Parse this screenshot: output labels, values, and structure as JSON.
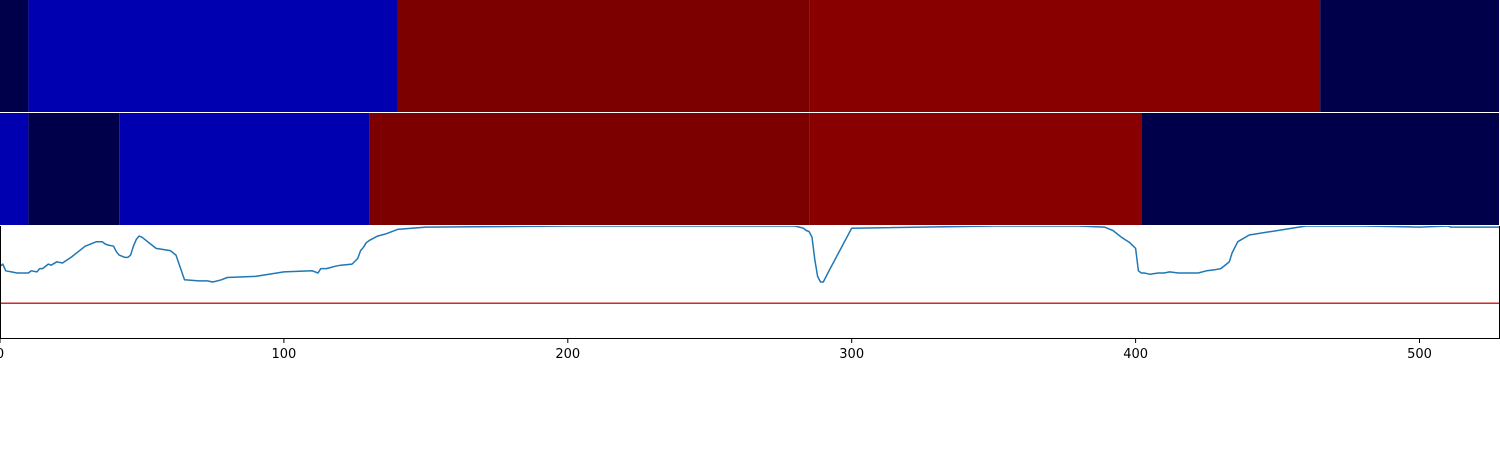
{
  "chart_data": {
    "type": "heatmap",
    "xlim": [
      0,
      528
    ],
    "x_ticks": [
      0,
      100,
      200,
      300,
      400,
      500
    ],
    "x_tick_labels": [
      "0",
      "100",
      "200",
      "300",
      "400",
      "500"
    ],
    "grid": false,
    "legend": "none",
    "colors": {
      "navy": "#00004a",
      "blue": "#0000b0",
      "dark_red": "#7c0000",
      "red": "#880000",
      "line": "#1f77b4",
      "threshold": "#d62728"
    },
    "heatmap_rows": [
      {
        "segments": [
          {
            "start": 0,
            "end": 10,
            "color": "#00004a"
          },
          {
            "start": 10,
            "end": 140,
            "color": "#0000b0"
          },
          {
            "start": 140,
            "end": 285,
            "color": "#7c0000"
          },
          {
            "start": 285,
            "end": 465,
            "color": "#880000"
          },
          {
            "start": 465,
            "end": 528,
            "color": "#00004a"
          }
        ]
      },
      {
        "segments": [
          {
            "start": 0,
            "end": 10,
            "color": "#0000b0"
          },
          {
            "start": 10,
            "end": 42,
            "color": "#00004a"
          },
          {
            "start": 42,
            "end": 130,
            "color": "#0000b0"
          },
          {
            "start": 130,
            "end": 285,
            "color": "#7c0000"
          },
          {
            "start": 285,
            "end": 402,
            "color": "#880000"
          },
          {
            "start": 402,
            "end": 528,
            "color": "#00004a"
          }
        ]
      }
    ],
    "line_panel": {
      "ylim": [
        0,
        1
      ],
      "threshold": 0.31,
      "series": [
        {
          "x": [
            0,
            1,
            2,
            4,
            6,
            8,
            10,
            11,
            13,
            14,
            15,
            17,
            18,
            20,
            22,
            25,
            30,
            33,
            34,
            36,
            37,
            38,
            40,
            41,
            42,
            44,
            45,
            46,
            47,
            48,
            49,
            50,
            52,
            55,
            60,
            62,
            65,
            70,
            73,
            75,
            78,
            80,
            90,
            100,
            110,
            112,
            113,
            115,
            118,
            120,
            124,
            126,
            127,
            128,
            129,
            130,
            133,
            136,
            140,
            150,
            200,
            280,
            283,
            284,
            285,
            286,
            287,
            288,
            289,
            290,
            292,
            300,
            350,
            380,
            389,
            390,
            392,
            395,
            398,
            400,
            401,
            402,
            403,
            405,
            408,
            410,
            412,
            415,
            418,
            420,
            422,
            425,
            428,
            430,
            432,
            433,
            434,
            436,
            440,
            460,
            480,
            500,
            510,
            511,
            528
          ],
          "y": [
            0.64,
            0.66,
            0.6,
            0.59,
            0.58,
            0.58,
            0.58,
            0.6,
            0.59,
            0.62,
            0.62,
            0.66,
            0.65,
            0.68,
            0.67,
            0.72,
            0.82,
            0.85,
            0.86,
            0.86,
            0.84,
            0.83,
            0.82,
            0.77,
            0.74,
            0.72,
            0.72,
            0.74,
            0.82,
            0.88,
            0.91,
            0.9,
            0.86,
            0.8,
            0.78,
            0.74,
            0.52,
            0.51,
            0.51,
            0.5,
            0.52,
            0.54,
            0.55,
            0.59,
            0.6,
            0.58,
            0.62,
            0.62,
            0.64,
            0.65,
            0.66,
            0.71,
            0.78,
            0.81,
            0.85,
            0.87,
            0.91,
            0.93,
            0.97,
            0.99,
            1.0,
            1.0,
            0.98,
            0.96,
            0.95,
            0.9,
            0.7,
            0.55,
            0.5,
            0.5,
            0.6,
            0.98,
            1.0,
            1.0,
            0.99,
            0.98,
            0.96,
            0.9,
            0.85,
            0.8,
            0.6,
            0.58,
            0.58,
            0.57,
            0.58,
            0.58,
            0.59,
            0.58,
            0.58,
            0.58,
            0.58,
            0.6,
            0.61,
            0.62,
            0.66,
            0.68,
            0.76,
            0.86,
            0.92,
            1.0,
            1.0,
            0.99,
            1.0,
            0.99,
            0.99
          ]
        }
      ]
    }
  }
}
